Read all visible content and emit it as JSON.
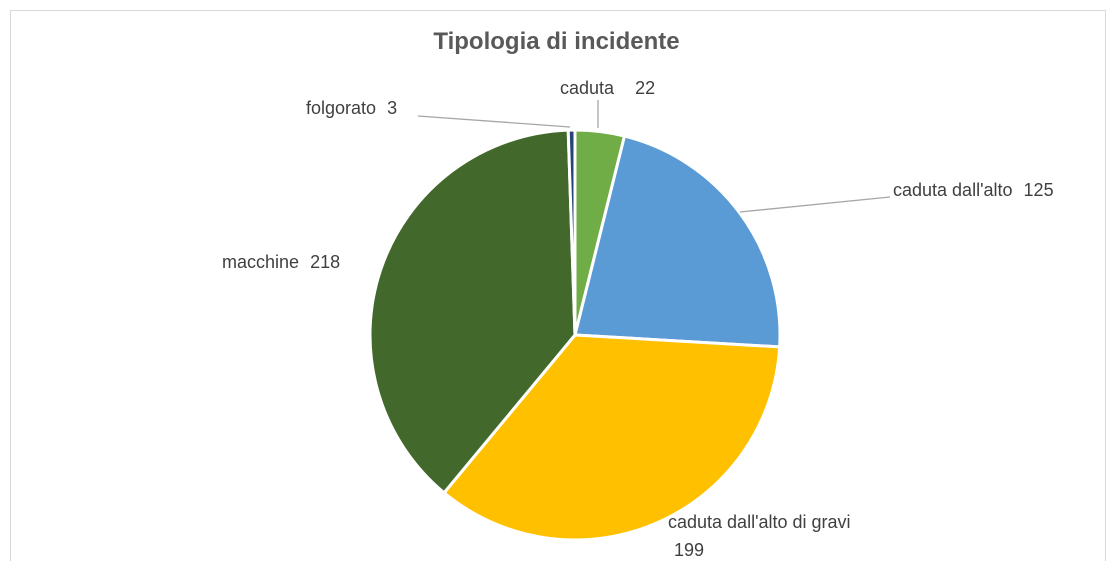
{
  "chart_data": {
    "type": "pie",
    "title": "Tipologia di incidente",
    "categories": [
      "caduta",
      "caduta dall'alto",
      "caduta dall'alto di gravi",
      "macchine",
      "folgorato"
    ],
    "values": [
      22,
      125,
      199,
      218,
      3
    ],
    "colors": [
      "#70ad47",
      "#5b9bd5",
      "#ffc000",
      "#43682b",
      "#264478"
    ]
  }
}
